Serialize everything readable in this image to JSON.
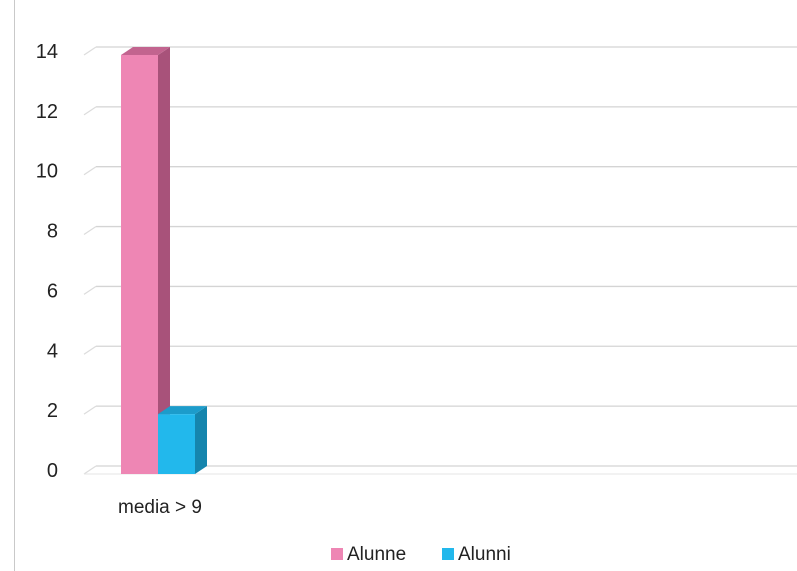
{
  "chart_data": {
    "type": "bar",
    "style": "3d-clustered-column",
    "categories": [
      "media > 9"
    ],
    "series": [
      {
        "name": "Alunne",
        "values": [
          14
        ],
        "color": "#ee86b4",
        "side_color": "#a8527a",
        "top_color": "#c2648f"
      },
      {
        "name": "Alunni",
        "values": [
          2
        ],
        "color": "#22b8ec",
        "side_color": "#1585ad",
        "top_color": "#1c9ccb"
      }
    ],
    "ylim": [
      0,
      14
    ],
    "yticks": [
      "0",
      "2",
      "4",
      "6",
      "8",
      "10",
      "12",
      "14"
    ],
    "grid": true,
    "legend": "bottom",
    "title": "",
    "xlabel": "",
    "ylabel": ""
  }
}
